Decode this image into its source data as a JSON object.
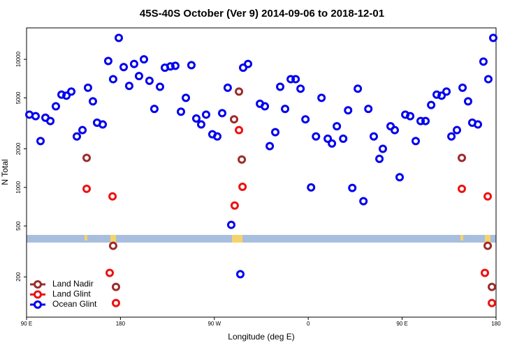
{
  "chart_data": {
    "type": "scatter",
    "title": "45S-40S October (Ver 9)   2014-09-06 to 2018-12-01",
    "x_label": "Longitude (deg E)",
    "y_label": "N Total",
    "log_y": true,
    "legend": "lower left",
    "xlim": [
      90,
      540
    ],
    "xticks": [
      {
        "value": 90,
        "label": "90 E"
      },
      {
        "value": 180,
        "label": "180"
      },
      {
        "value": 270,
        "label": "90 W"
      },
      {
        "value": 360,
        "label": "0"
      },
      {
        "value": 450,
        "label": "90 E"
      },
      {
        "value": 540,
        "label": "180"
      }
    ],
    "ylim": [
      97,
      17600
    ],
    "yticks": [
      200,
      500,
      1000,
      2000,
      5000,
      10000
    ],
    "series": [
      {
        "name": "Land Nadir",
        "color": "#9b2c2c",
        "x": [
          147.6,
          173.0,
          175.7,
          288.9,
          293.6,
          296.3,
          507.2,
          532.0,
          536.0
        ],
        "values": [
          1700,
          350,
          167,
          3400,
          5600,
          1650,
          1700,
          350,
          167
        ]
      },
      {
        "name": "Land Glint",
        "color": "#ee1111",
        "x": [
          147.6,
          172.4,
          169.7,
          175.7,
          289.5,
          293.6,
          297.0,
          507.2,
          532.0,
          529.3,
          536.0
        ],
        "values": [
          975,
          850,
          215,
          125,
          722,
          2800,
          1010,
          975,
          850,
          215,
          125
        ]
      },
      {
        "name": "Ocean Glint",
        "color": "#0000ee",
        "x": [
          92.7,
          98.7,
          103.4,
          108.1,
          112.8,
          118.1,
          123.5,
          128.2,
          132.9,
          138.2,
          143.6,
          148.9,
          153.6,
          157.6,
          163.0,
          168.3,
          173.0,
          178.4,
          183.1,
          188.4,
          193.1,
          197.8,
          202.5,
          207.8,
          212.5,
          217.9,
          222.6,
          227.9,
          232.6,
          238.0,
          242.7,
          248.0,
          252.7,
          257.4,
          262.1,
          268.1,
          272.8,
          277.5,
          282.8,
          297.6,
          302.3,
          313.7,
          318.4,
          323.1,
          328.4,
          333.1,
          337.8,
          343.2,
          347.9,
          352.6,
          357.3,
          362.7,
          367.4,
          372.7,
          378.7,
          382.7,
          387.4,
          393.5,
          398.2,
          402.2,
          407.5,
          412.9,
          417.6,
          422.8,
          428.2,
          431.5,
          438.9,
          442.9,
          447.6,
          453.0,
          457.7,
          463.0,
          467.7,
          472.4,
          477.8,
          483.1,
          487.8,
          492.5,
          497.2,
          502.5,
          507.9,
          513.2,
          517.2,
          522.6,
          527.9,
          532.6,
          537.3,
          294.9,
          286.2
        ],
        "values": [
          3700,
          3600,
          2300,
          3500,
          3300,
          4300,
          5300,
          5200,
          5600,
          2500,
          2800,
          6000,
          4700,
          3200,
          3100,
          9700,
          7000,
          14700,
          8700,
          6200,
          9200,
          7400,
          10000,
          6800,
          4100,
          6100,
          8600,
          8800,
          8900,
          3900,
          5000,
          9000,
          3450,
          3100,
          3700,
          2600,
          2500,
          3800,
          6000,
          8600,
          9200,
          4500,
          4300,
          2100,
          2700,
          6100,
          4100,
          7000,
          7000,
          5900,
          3400,
          1000,
          2500,
          5000,
          2400,
          2200,
          3000,
          2400,
          4000,
          990,
          5900,
          780,
          4100,
          2500,
          1670,
          2000,
          3000,
          2800,
          1200,
          3700,
          3600,
          2300,
          3300,
          3300,
          4400,
          5300,
          5200,
          5600,
          2500,
          2800,
          6000,
          4700,
          3200,
          3100,
          9600,
          7000,
          14700,
          210,
          510
        ]
      }
    ]
  }
}
